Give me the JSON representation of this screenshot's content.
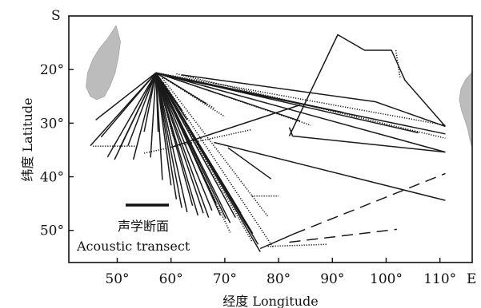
{
  "chart_data": {
    "type": "map",
    "x_axis": {
      "title": "经度 Longitude",
      "end_label": "E",
      "range": [
        41,
        116
      ],
      "ticks": [
        {
          "value": 50,
          "label": "50°"
        },
        {
          "value": 60,
          "label": "60°"
        },
        {
          "value": 70,
          "label": "70°"
        },
        {
          "value": 80,
          "label": "80°"
        },
        {
          "value": 90,
          "label": "90°"
        },
        {
          "value": 100,
          "label": "100°"
        },
        {
          "value": 110,
          "label": "110°"
        }
      ]
    },
    "y_axis": {
      "title": "纬度 Latitude",
      "end_label": "S",
      "range": [
        10,
        56
      ],
      "ticks": [
        {
          "value": 20,
          "label": "20°"
        },
        {
          "value": 30,
          "label": "30°"
        },
        {
          "value": 40,
          "label": "40°"
        },
        {
          "value": 50,
          "label": "50°"
        }
      ]
    },
    "legend": {
      "label_cn": "声学断面",
      "label_en": "Acoustic transect",
      "placement": "bottom-left"
    },
    "land": [
      {
        "name": "Madagascar",
        "points": [
          [
            49.8,
            11.8
          ],
          [
            50.6,
            14.8
          ],
          [
            50.2,
            17.8
          ],
          [
            49.6,
            20.6
          ],
          [
            48.6,
            23.2
          ],
          [
            47.6,
            25.0
          ],
          [
            46.2,
            25.6
          ],
          [
            45.0,
            25.0
          ],
          [
            44.2,
            23.2
          ],
          [
            44.5,
            20.6
          ],
          [
            45.4,
            18.2
          ],
          [
            46.6,
            16.2
          ],
          [
            48.2,
            14.2
          ]
        ]
      },
      {
        "name": "Australia",
        "points": [
          [
            116,
            20.5
          ],
          [
            114.8,
            21.8
          ],
          [
            113.9,
            23.6
          ],
          [
            113.6,
            25.6
          ],
          [
            114.0,
            27.6
          ],
          [
            114.7,
            29.6
          ],
          [
            115.2,
            31.2
          ],
          [
            115.6,
            33.2
          ],
          [
            116,
            34.6
          ]
        ]
      }
    ],
    "transects": [
      {
        "style": "solid",
        "points": [
          [
            57.2,
            20.6
          ],
          [
            46,
            29.4
          ]
        ]
      },
      {
        "style": "solid",
        "points": [
          [
            57.2,
            20.6
          ],
          [
            45,
            34.2
          ]
        ]
      },
      {
        "style": "solid",
        "points": [
          [
            57.2,
            20.6
          ],
          [
            47,
            32.6
          ]
        ]
      },
      {
        "style": "solid",
        "points": [
          [
            57.2,
            20.6
          ],
          [
            48.2,
            36.3
          ]
        ]
      },
      {
        "style": "solid",
        "points": [
          [
            57.2,
            20.6
          ],
          [
            49.5,
            36.8
          ]
        ]
      },
      {
        "style": "solid",
        "points": [
          [
            57.2,
            20.6
          ],
          [
            50.5,
            34.6
          ]
        ]
      },
      {
        "style": "solid",
        "points": [
          [
            57.2,
            20.6
          ],
          [
            52,
            34.2
          ]
        ]
      },
      {
        "style": "solid",
        "points": [
          [
            57.2,
            20.6
          ],
          [
            53,
            36.8
          ]
        ]
      },
      {
        "style": "solid",
        "points": [
          [
            57.2,
            20.6
          ],
          [
            55,
            31.6
          ]
        ]
      },
      {
        "style": "solid",
        "points": [
          [
            57.2,
            20.6
          ],
          [
            56.2,
            36.4
          ]
        ]
      },
      {
        "style": "solid",
        "points": [
          [
            57.2,
            20.6
          ],
          [
            57.6,
            31.6
          ]
        ]
      },
      {
        "style": "solid",
        "points": [
          [
            57.2,
            20.6
          ],
          [
            58.4,
            40.6
          ]
        ]
      },
      {
        "style": "solid",
        "points": [
          [
            57.2,
            20.6
          ],
          [
            60,
            41.6
          ]
        ]
      },
      {
        "style": "solid",
        "points": [
          [
            57.2,
            20.6
          ],
          [
            61,
            44.2
          ]
        ]
      },
      {
        "style": "solid",
        "points": [
          [
            57.2,
            20.6
          ],
          [
            62,
            45.8
          ]
        ]
      },
      {
        "style": "solid",
        "points": [
          [
            57.2,
            20.6
          ],
          [
            63,
            46.6
          ]
        ]
      },
      {
        "style": "solid",
        "points": [
          [
            57.2,
            20.6
          ],
          [
            64,
            45.4
          ]
        ]
      },
      {
        "style": "solid",
        "points": [
          [
            57.2,
            20.6
          ],
          [
            65,
            47.2
          ]
        ]
      },
      {
        "style": "solid",
        "points": [
          [
            57.2,
            20.6
          ],
          [
            66,
            46.8
          ]
        ]
      },
      {
        "style": "solid",
        "points": [
          [
            57.2,
            20.6
          ],
          [
            67,
            47.6
          ]
        ]
      },
      {
        "style": "solid",
        "points": [
          [
            57.2,
            20.6
          ],
          [
            67.6,
            46.3
          ]
        ]
      },
      {
        "style": "solid",
        "points": [
          [
            57.2,
            20.6
          ],
          [
            68.4,
            45.0
          ]
        ]
      },
      {
        "style": "solid",
        "points": [
          [
            57.2,
            20.6
          ],
          [
            69.2,
            47.2
          ]
        ]
      },
      {
        "style": "solid",
        "points": [
          [
            57.2,
            20.6
          ],
          [
            70.2,
            47.8
          ]
        ]
      },
      {
        "style": "solid",
        "points": [
          [
            57.2,
            20.6
          ],
          [
            71.0,
            48.6
          ]
        ]
      },
      {
        "style": "solid",
        "points": [
          [
            57.2,
            20.6
          ],
          [
            72.0,
            47.6
          ]
        ]
      },
      {
        "style": "solid",
        "points": [
          [
            57.2,
            20.6
          ],
          [
            73.0,
            46.8
          ]
        ]
      },
      {
        "style": "solid",
        "points": [
          [
            57.2,
            20.6
          ],
          [
            74.0,
            49.0
          ]
        ]
      },
      {
        "style": "solid",
        "points": [
          [
            57.2,
            20.6
          ],
          [
            75.2,
            50.6
          ]
        ]
      },
      {
        "style": "solid",
        "points": [
          [
            57.2,
            20.6
          ],
          [
            76.2,
            52.6
          ]
        ]
      },
      {
        "style": "solid",
        "points": [
          [
            57.2,
            20.6
          ],
          [
            76.6,
            54.0
          ]
        ]
      },
      {
        "style": "solid",
        "points": [
          [
            57.2,
            20.6
          ],
          [
            63,
            29.4
          ]
        ]
      },
      {
        "style": "solid",
        "points": [
          [
            57.2,
            20.6
          ],
          [
            66.6,
            26.4
          ]
        ]
      },
      {
        "style": "solid",
        "points": [
          [
            57.2,
            20.6
          ],
          [
            62,
            27.6
          ]
        ]
      },
      {
        "style": "dotted",
        "points": [
          [
            57.2,
            20.6
          ],
          [
            68,
            27.2
          ]
        ]
      },
      {
        "style": "dotted",
        "points": [
          [
            57.2,
            20.6
          ],
          [
            70,
            28.8
          ]
        ]
      },
      {
        "style": "dotted",
        "points": [
          [
            57.2,
            20.6
          ],
          [
            60.4,
            32.6
          ]
        ]
      },
      {
        "style": "dotted",
        "points": [
          [
            58.4,
            21.6
          ],
          [
            78,
            47.4
          ]
        ]
      },
      {
        "style": "dotted",
        "points": [
          [
            58.6,
            22.4
          ],
          [
            79,
            53.2
          ]
        ]
      },
      {
        "style": "dotted",
        "points": [
          [
            59.6,
            26.0
          ],
          [
            71,
            50.4
          ]
        ]
      },
      {
        "style": "dotted",
        "points": [
          [
            61,
            27.4
          ],
          [
            75,
            52.0
          ]
        ]
      },
      {
        "style": "dotted",
        "points": [
          [
            57.2,
            20.6
          ],
          [
            111,
            30.4
          ]
        ]
      },
      {
        "style": "solid",
        "points": [
          [
            57.2,
            20.6
          ],
          [
            111,
            35.4
          ]
        ]
      },
      {
        "style": "solid",
        "points": [
          [
            57.2,
            20.6
          ],
          [
            106,
            31.8
          ]
        ]
      },
      {
        "style": "solid",
        "points": [
          [
            57.2,
            20.6
          ],
          [
            92,
            28.0
          ]
        ]
      },
      {
        "style": "dotted",
        "points": [
          [
            57.2,
            20.6
          ],
          [
            86,
            30.4
          ]
        ]
      },
      {
        "style": "solid",
        "points": [
          [
            57.2,
            20.6
          ],
          [
            84,
            29.6
          ]
        ]
      },
      {
        "style": "dotted",
        "points": [
          [
            57.2,
            20.6
          ],
          [
            79,
            25.6
          ]
        ]
      },
      {
        "style": "solid",
        "points": [
          [
            62,
            21.0
          ],
          [
            98,
            26.0
          ],
          [
            111,
            30.6
          ]
        ]
      },
      {
        "style": "solid",
        "points": [
          [
            60,
            21.4
          ],
          [
            111,
            32.0
          ]
        ]
      },
      {
        "style": "dotted",
        "points": [
          [
            61,
            20.8
          ],
          [
            111,
            32.8
          ]
        ]
      },
      {
        "style": "dotted",
        "points": [
          [
            45.5,
            34.3
          ],
          [
            53.5,
            34.3
          ]
        ]
      },
      {
        "style": "solid",
        "points": [
          [
            60,
            34.5
          ],
          [
            84,
            26.6
          ]
        ]
      },
      {
        "style": "dotted",
        "points": [
          [
            55,
            35.6
          ],
          [
            75,
            31.2
          ]
        ]
      },
      {
        "style": "solid",
        "points": [
          [
            68,
            33.6
          ],
          [
            111,
            44.4
          ]
        ]
      },
      {
        "style": "solid",
        "points": [
          [
            70.6,
            34.6
          ],
          [
            78.6,
            40.4
          ]
        ]
      },
      {
        "style": "dotted",
        "points": [
          [
            75,
            43.6
          ],
          [
            80,
            43.6
          ]
        ]
      },
      {
        "style": "solid",
        "points": [
          [
            82,
            32.4
          ],
          [
            91,
            13.5
          ],
          [
            96,
            16.4
          ],
          [
            101,
            16.4
          ],
          [
            103.5,
            22
          ],
          [
            111,
            30.6
          ]
        ]
      },
      {
        "style": "dotted",
        "points": [
          [
            101.8,
            16.4
          ],
          [
            102.6,
            21.6
          ]
        ]
      },
      {
        "style": "solid",
        "points": [
          [
            82,
            30.8
          ],
          [
            82.6,
            32.4
          ],
          [
            111,
            35.4
          ]
        ]
      },
      {
        "style": "solid",
        "points": [
          [
            76.6,
            53.4
          ],
          [
            83,
            50.6
          ]
        ]
      },
      {
        "style": "dashed",
        "points": [
          [
            83,
            50.6
          ],
          [
            111,
            39.4
          ]
        ]
      },
      {
        "style": "dashed",
        "points": [
          [
            82,
            52.2
          ],
          [
            102,
            49.8
          ]
        ]
      },
      {
        "style": "dotted",
        "points": [
          [
            78,
            53.0
          ],
          [
            89,
            52.6
          ]
        ]
      }
    ]
  }
}
